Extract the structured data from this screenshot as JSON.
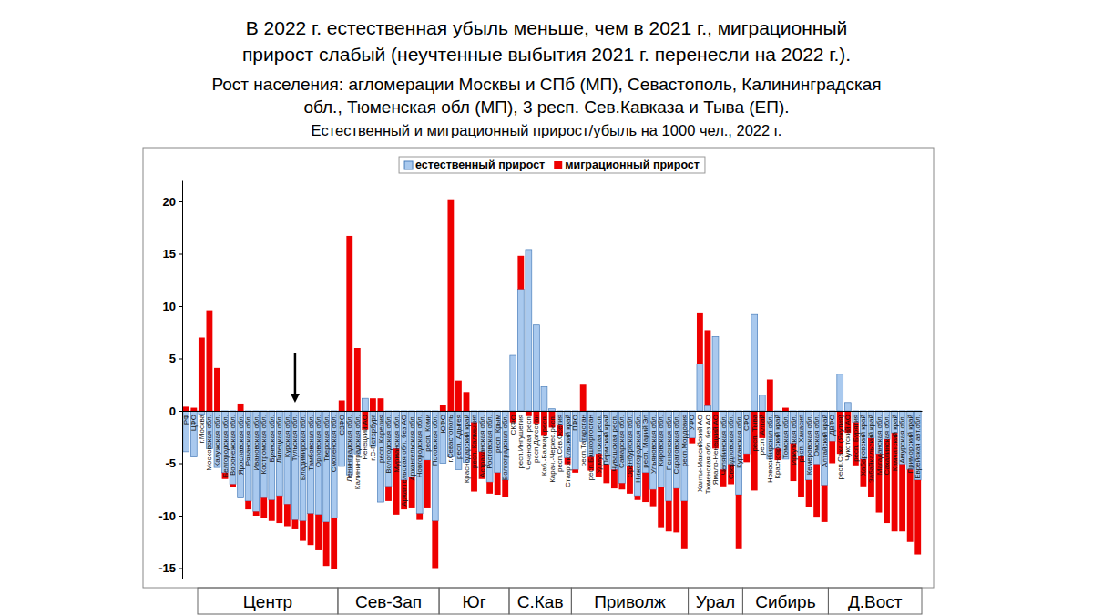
{
  "chart_data": {
    "type": "bar",
    "stacked": true,
    "legend": "top",
    "grid": false,
    "title": "В 2022 г. естественная убыль меньше, чем в 2021 г., миграционный\nприрост слабый (неучтенные выбытия 2021 г. перенесли на 2022 г.).",
    "subtitle": "Рост населения: агломерации Москвы и СПб (МП), Севастополь, Калининградская\nобл., Тюменская обл (МП), 3 респ. Сев.Кавказа и Тыва (ЕП).\nЕстественный и миграционный прирост/убыль на 1000 чел., 2022 г.",
    "categories": [
      "РФ",
      "ЦФО",
      "г.Москва",
      "Московская обл.",
      "Калужская обл.",
      "Белгородская обл.",
      "Воронежская обл.",
      "Ярославская обл.",
      "Рязанская обл.",
      "Ивановская обл.",
      "Костромская обл.",
      "Брянская обл.",
      "Липецкая обл.",
      "Курская обл.",
      "Тульская обл.",
      "Владимирская обл.",
      "Тамбовская обл.",
      "Орловская обл.",
      "Тверская обл.",
      "Смоленская обл.",
      "СЗФО",
      "Ленинградская обл.",
      "Калининградская обл.",
      "Ненецкий АО",
      "г.С-Петербург",
      "респ. Карелия",
      "Вологодская обл.",
      "Мурманская обл.",
      "Архангельская обл. без АО",
      "Архангельская обл.",
      "Новгородская обл.",
      "респ. Коми",
      "Псковская обл.",
      "ЮФО",
      "г.Севастополь",
      "респ. Адыгея",
      "Краснодарский край",
      "респ. Калмыкия",
      "Астраханская обл.",
      "Ростовская обл.",
      "респ. Крым",
      "Волгоградская обл.",
      "СКФО",
      "респ.Ингушетия",
      "Чеченская респ.",
      "респ.Дагестан",
      "Каб.-Балкар.респ.",
      "Карач.-Черкес.респ.",
      "респ.Сев.Осетия",
      "Ставропольский край",
      "ПФО",
      "респ.Татарстан",
      "респ.Башкортостан",
      "Удмуртская респ.",
      "Пермский край",
      "Чувашская респ.",
      "Самарская обл.",
      "Оренбургская обл.",
      "Нижегородская обл.",
      "респ. Марий Эл",
      "Ульяновская обл.",
      "Кировская обл.",
      "Пензенская обл.",
      "Саратовская обл.",
      "респ.Мордовия",
      "УФО",
      "Ханты-Мансийский АО",
      "Тюменская обл. без АО",
      "Ямало-Ненецкий АО",
      "Челябинская обл.",
      "Свердловская обл.",
      "Курганская обл.",
      "СФО",
      "респ. Тыва",
      "респ. Алтай",
      "Новосибирская обл.",
      "Красноярский край",
      "Томская обл.",
      "Иркутская обл.",
      "респ. Хакасия",
      "Кемеровская обл.",
      "Омская обл.",
      "Алтайский край",
      "ДВФО",
      "респ.Саха (Якутия)",
      "Чукотский АО",
      "респ. Бурятия",
      "Хабаровский край",
      "Забайкальский край",
      "Магаданская обл.",
      "Сахалинская обл.",
      "Камчатский край",
      "Амурская обл.",
      "Приморский край",
      "Еврейская авт.обл."
    ],
    "series": [
      {
        "name": "естественный прирост",
        "color": "#a9c9ee",
        "values": [
          -3.9,
          -4.4,
          -0.3,
          -3.6,
          -5.4,
          -5.9,
          -7.0,
          -8.3,
          -8.6,
          -9.6,
          -8.3,
          -8.5,
          -8.1,
          -8.9,
          -10.4,
          -10.5,
          -9.8,
          -9.9,
          -10.6,
          -10.2,
          -5.3,
          -6.1,
          -4.1,
          1.2,
          -3.4,
          -8.7,
          -7.2,
          -3.6,
          -6.6,
          -6.3,
          -9.8,
          -4.7,
          -10.5,
          -5.0,
          -4.4,
          -5.6,
          -4.9,
          -1.1,
          -3.9,
          -6.8,
          -5.9,
          -6.6,
          5.3,
          11.6,
          15.4,
          8.2,
          2.3,
          0.2,
          -1.4,
          -4.5,
          -5.6,
          -2.9,
          -4.4,
          -4.1,
          -5.1,
          -5.6,
          -6.9,
          -5.3,
          -8.1,
          -5.9,
          -7.5,
          -7.3,
          -8.6,
          -7.4,
          -8.6,
          -2.6,
          4.5,
          0.5,
          7.1,
          -5.6,
          -5.1,
          -8.0,
          -4.1,
          9.2,
          1.5,
          -4.6,
          -3.6,
          -4.6,
          -3.1,
          -4.3,
          -6.6,
          -5.1,
          -7.1,
          -2.9,
          3.5,
          0.8,
          -1.1,
          -4.6,
          -2.6,
          -4.1,
          -2.7,
          -2.1,
          -5.1,
          -5.6,
          -6.6
        ]
      },
      {
        "name": "миграционный прирост",
        "color": "#ee0000",
        "values": [
          0.4,
          0.3,
          7.0,
          9.6,
          4.1,
          -0.6,
          -0.3,
          0.7,
          -0.8,
          -0.4,
          -1.9,
          -2.0,
          -2.6,
          -2.1,
          -0.9,
          -1.9,
          -3.0,
          -3.4,
          -4.2,
          -4.9,
          1.0,
          16.7,
          6.0,
          -1.8,
          1.2,
          1.2,
          -1.4,
          -6.3,
          -2.8,
          -3.0,
          -0.6,
          -4.6,
          -4.5,
          0.6,
          20.2,
          2.9,
          1.8,
          -6.6,
          -2.6,
          -1.1,
          -2.1,
          -1.6,
          -1.1,
          3.2,
          -0.5,
          -1.2,
          -2.3,
          -1.6,
          -1.0,
          -0.6,
          -0.3,
          2.5,
          -1.3,
          -2.2,
          -1.8,
          -1.8,
          -0.6,
          -2.6,
          -0.4,
          -2.8,
          -1.6,
          -3.8,
          -2.9,
          -4.2,
          -4.6,
          -0.5,
          4.9,
          7.2,
          -3.6,
          -1.6,
          -1.9,
          -5.2,
          -0.8,
          -7.6,
          -2.6,
          3.0,
          -1.1,
          0.3,
          -3.6,
          -3.9,
          -2.6,
          -5.0,
          -3.5,
          -2.1,
          -4.1,
          -2.1,
          -4.1,
          -2.6,
          -5.6,
          -5.6,
          -8.0,
          -9.4,
          -6.4,
          -6.9,
          -7.1
        ]
      }
    ],
    "ylim": [
      -16,
      22
    ],
    "yticks": [
      -15,
      -10,
      -5,
      0,
      5,
      10,
      15,
      20
    ],
    "groups": [
      {
        "label": "Центр",
        "first": "РФ",
        "last": "Смоленская обл."
      },
      {
        "label": "Сев-Зап",
        "first": "СЗФО",
        "last": "Псковская обл."
      },
      {
        "label": "Юг",
        "first": "ЮФО",
        "last": "Волгоградская обл."
      },
      {
        "label": "С.Кав",
        "first": "СКФО",
        "last": "Ставропольский край"
      },
      {
        "label": "Приволж",
        "first": "ПФО",
        "last": "респ.Мордовия"
      },
      {
        "label": "Урал",
        "first": "УФО",
        "last": "Курганская обл."
      },
      {
        "label": "Сибирь",
        "first": "СФО",
        "last": "Алтайский край"
      },
      {
        "label": "Д.Вост",
        "first": "ДВФО",
        "last": "Еврейская авт.обл."
      }
    ],
    "annotations": [
      {
        "type": "arrow",
        "category": "Тульская обл."
      }
    ]
  }
}
